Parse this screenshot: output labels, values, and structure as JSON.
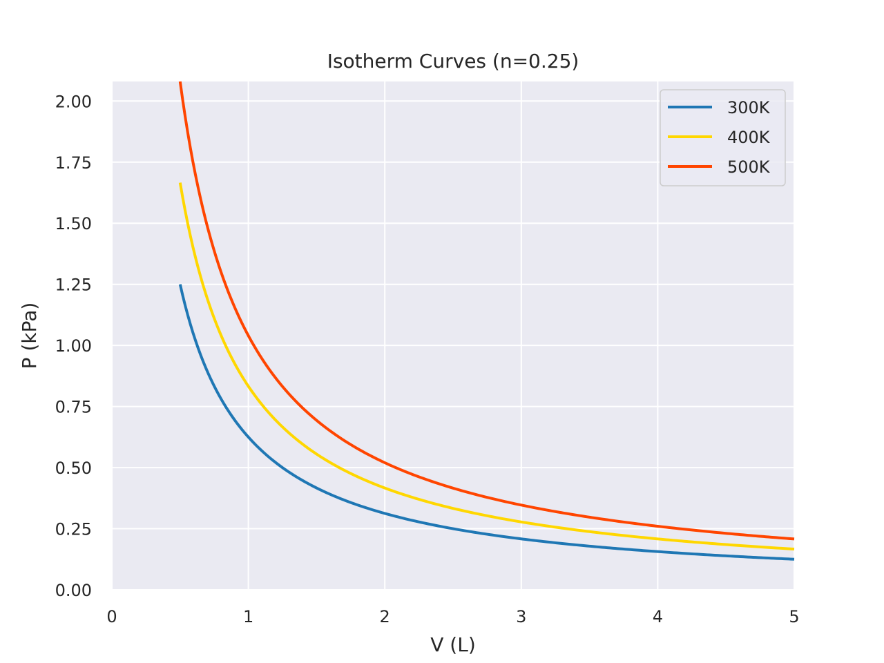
{
  "chart_data": {
    "type": "line",
    "title": "Isotherm Curves (n=0.25)",
    "xlabel": "V (L)",
    "ylabel": "P (kPa)",
    "xlim": [
      0,
      5
    ],
    "ylim": [
      0,
      2.08
    ],
    "xticks": [
      "0",
      "1",
      "2",
      "3",
      "4",
      "5"
    ],
    "yticks": [
      "0.00",
      "0.25",
      "0.50",
      "0.75",
      "1.00",
      "1.25",
      "1.50",
      "1.75",
      "2.00"
    ],
    "grid": true,
    "legend_position": "top-right",
    "x_range": [
      0.5,
      5
    ],
    "formula": "P = k / V",
    "series": [
      {
        "name": "300K",
        "color": "#1f77b4",
        "k": 0.625
      },
      {
        "name": "400K",
        "color": "#ffd700",
        "k": 0.833
      },
      {
        "name": "500K",
        "color": "#ff4500",
        "k": 1.04
      }
    ]
  }
}
